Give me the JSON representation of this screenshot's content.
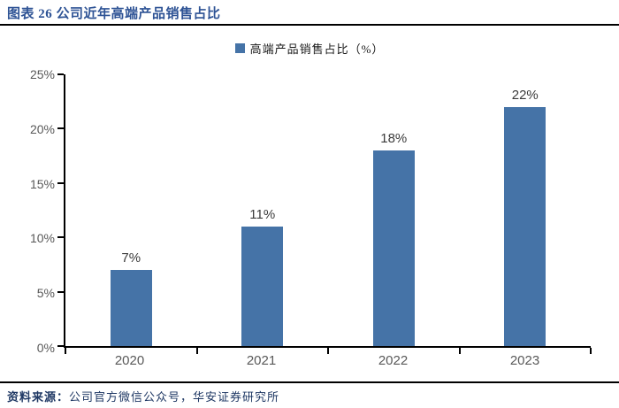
{
  "header": {
    "title": "图表 26 公司近年高端产品销售占比"
  },
  "legend": {
    "label": "高端产品销售占比（%）"
  },
  "footer": {
    "source_prefix": "资料来源：",
    "source_text": "公司官方微信公众号，华安证券研究所"
  },
  "colors": {
    "bar": "#4573A7",
    "title_text": "#2E5395",
    "source_text": "#1F3864",
    "axis_text": "#595959"
  },
  "chart_data": {
    "type": "bar",
    "title": "图表 26 公司近年高端产品销售占比",
    "legend": [
      "高端产品销售占比（%）"
    ],
    "legend_position": "top-center",
    "categories": [
      "2020",
      "2021",
      "2022",
      "2023"
    ],
    "values": [
      7,
      11,
      18,
      22
    ],
    "value_labels": [
      "7%",
      "11%",
      "18%",
      "22%"
    ],
    "ylabel": "",
    "xlabel": "",
    "ylim": [
      0,
      25
    ],
    "ytick_step": 5,
    "ytick_labels": [
      "25%",
      "20%",
      "15%",
      "10%",
      "5%",
      "0%"
    ],
    "grid": false,
    "bar_color": "#4573A7"
  }
}
